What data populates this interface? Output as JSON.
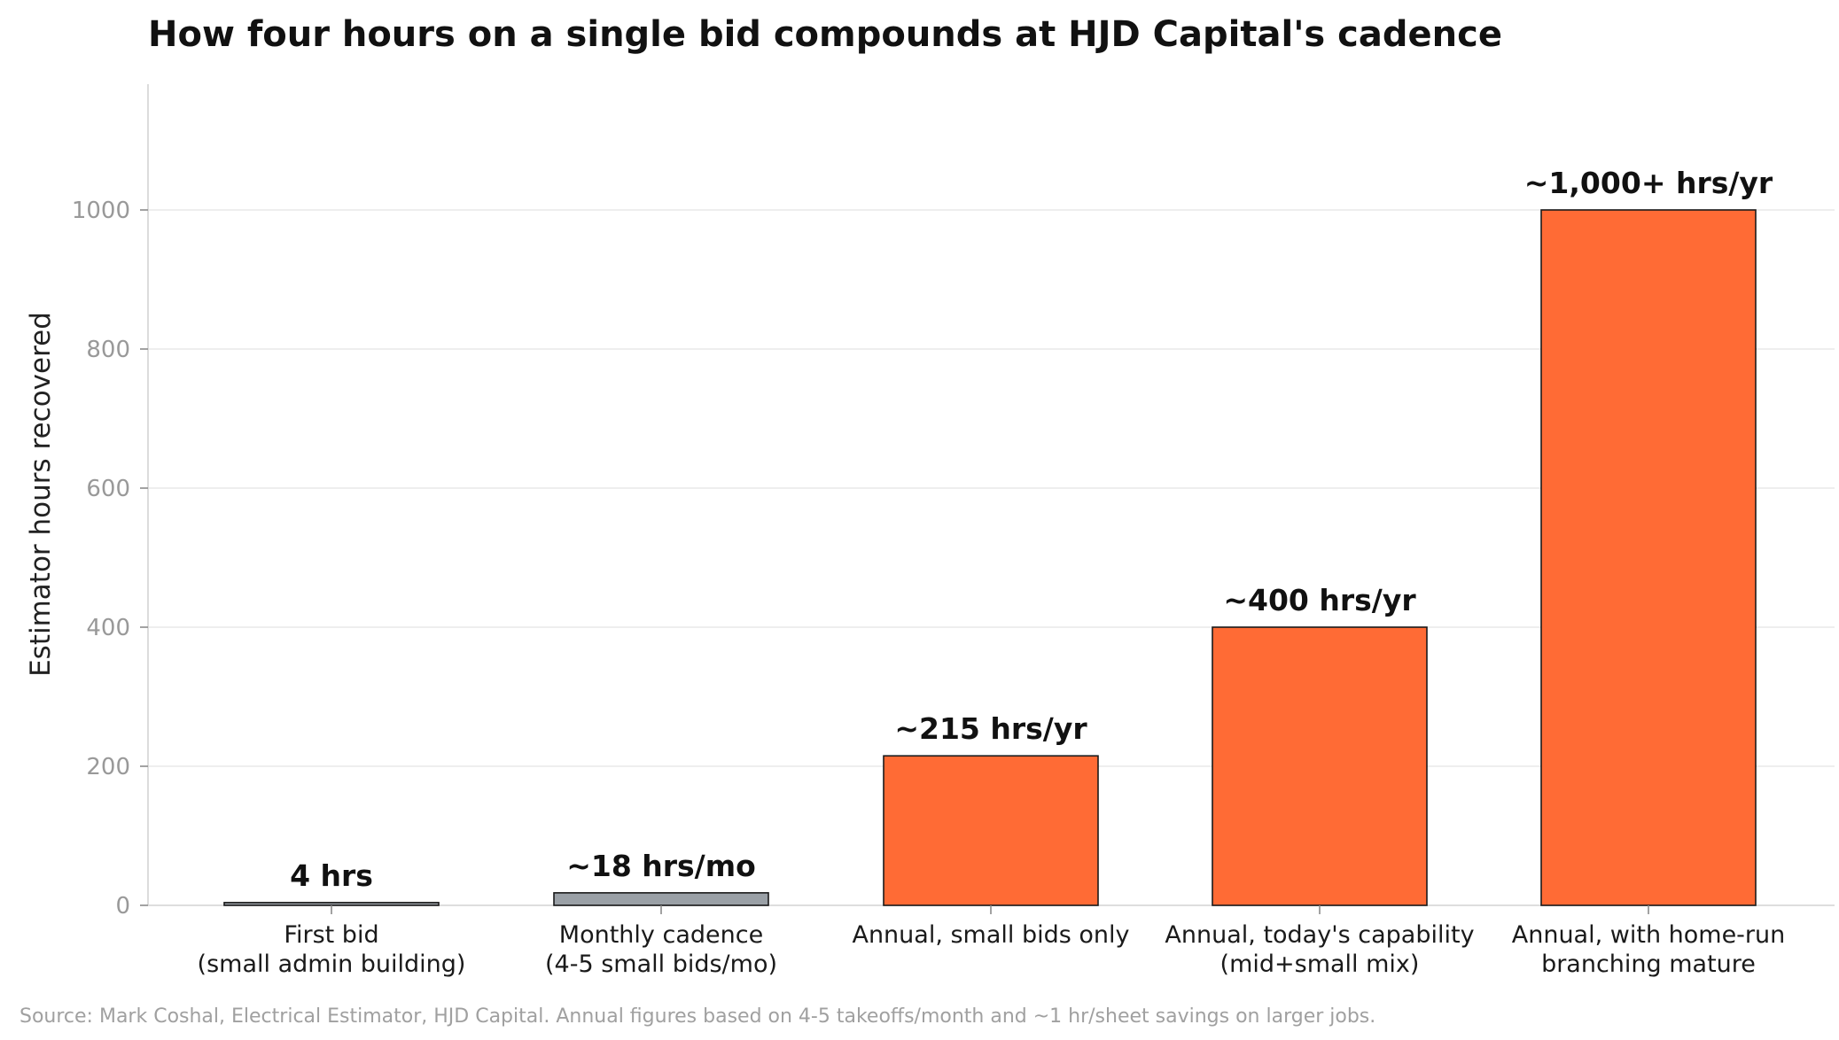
{
  "chart_data": {
    "type": "bar",
    "title": "How four hours on a single bid compounds at HJD Capital's cadence",
    "xlabel": "",
    "ylabel": "Estimator hours recovered",
    "ylim": [
      0,
      1180
    ],
    "yticks": [
      0,
      200,
      400,
      600,
      800,
      1000
    ],
    "grid": "horizontal",
    "categories": [
      [
        "First bid",
        "(small admin building)"
      ],
      [
        "Monthly cadence",
        "(4-5 small bids/mo)"
      ],
      [
        "Annual, small bids only"
      ],
      [
        "Annual, today's capability",
        "(mid+small mix)"
      ],
      [
        "Annual, with home-run",
        "branching mature"
      ]
    ],
    "values": [
      4,
      18,
      215,
      400,
      1000
    ],
    "data_labels": [
      "4 hrs",
      "~18 hrs/mo",
      "~215 hrs/yr",
      "~400 hrs/yr",
      "~1,000+ hrs/yr"
    ],
    "bar_colors": [
      "#9aa0a6",
      "#9aa0a6",
      "#ff6b35",
      "#ff6b35",
      "#ff6b35"
    ],
    "bar_edge_color": "#1a1a1a",
    "source": "Source: Mark Coshal, Electrical Estimator, HJD Capital. Annual figures based on 4-5 takeoffs/month and ~1 hr/sheet savings on larger jobs."
  }
}
